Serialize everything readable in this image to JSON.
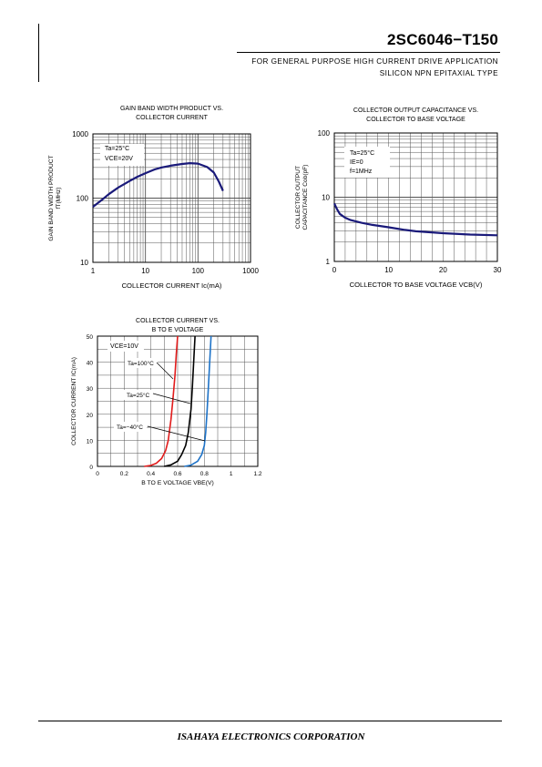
{
  "header": {
    "part_number": "2SC6046−T150",
    "purpose": "FOR GENERAL PURPOSE HIGH CURRENT DRIVE APPLICATION",
    "type": "SILICON NPN EPITAXIAL TYPE"
  },
  "footer": {
    "company": "ISAHAYA ELECTRONICS CORPORATION"
  },
  "chart_data": [
    {
      "id": "ft",
      "type": "line",
      "title_lines": [
        "GAIN BAND WIDTH PRODUCT VS.",
        "COLLECTOR CURRENT"
      ],
      "xlabel": "COLLECTOR CURRENT  Ic(mA)",
      "ylabel_lines": [
        "GAIN BAND WIDTH PRODUCT",
        "fT(MHz)"
      ],
      "x_scale": "log",
      "y_scale": "log",
      "xlim": [
        1,
        1000
      ],
      "ylim": [
        10,
        1000
      ],
      "x_ticks": [
        {
          "v": 1,
          "label": "1"
        },
        {
          "v": 10,
          "label": "10"
        },
        {
          "v": 100,
          "label": "100"
        },
        {
          "v": 1000,
          "label": "1000"
        }
      ],
      "y_ticks": [
        {
          "v": 10,
          "label": "10"
        },
        {
          "v": 100,
          "label": "100"
        },
        {
          "v": 1000,
          "label": "1000"
        }
      ],
      "grid": true,
      "annotations": [
        "Ta=25°C",
        "VCE=20V"
      ],
      "series": [
        {
          "color": "#1a1a7a",
          "x": [
            1,
            1.5,
            2,
            3,
            5,
            7,
            10,
            15,
            20,
            30,
            50,
            70,
            100,
            150,
            200,
            250,
            300
          ],
          "y": [
            73,
            95,
            115,
            145,
            185,
            215,
            245,
            280,
            300,
            320,
            340,
            350,
            345,
            305,
            250,
            180,
            130
          ]
        }
      ]
    },
    {
      "id": "cob",
      "type": "line",
      "title_lines": [
        "COLLECTOR OUTPUT CAPACITANCE VS.",
        "COLLECTOR TO BASE VOLTAGE"
      ],
      "xlabel": "COLLECTOR TO BASE VOLTAGE  VCB(V)",
      "ylabel_lines": [
        "COLLECTOR OUTPUT",
        "CAPACITANCE  Cob(pF)"
      ],
      "x_scale": "linear",
      "y_scale": "log",
      "xlim": [
        0,
        30
      ],
      "ylim": [
        1,
        100
      ],
      "x_ticks": [
        {
          "v": 0,
          "label": "0"
        },
        {
          "v": 10,
          "label": "10"
        },
        {
          "v": 20,
          "label": "20"
        },
        {
          "v": 30,
          "label": "30"
        }
      ],
      "y_ticks": [
        {
          "v": 1,
          "label": "1"
        },
        {
          "v": 10,
          "label": "10"
        },
        {
          "v": 100,
          "label": "100"
        }
      ],
      "grid": true,
      "annotations": [
        "Ta=25°C",
        "IE=0",
        "f=1MHz"
      ],
      "series": [
        {
          "color": "#1a1a7a",
          "x": [
            0,
            0.5,
            1,
            2,
            3,
            5,
            7,
            10,
            13,
            15,
            20,
            25,
            30
          ],
          "y": [
            8,
            6.5,
            5.5,
            4.8,
            4.4,
            4.0,
            3.7,
            3.4,
            3.1,
            2.95,
            2.75,
            2.62,
            2.55
          ]
        }
      ]
    },
    {
      "id": "vbe",
      "type": "line",
      "title_lines": [
        "COLLECTOR CURRENT VS.",
        "B TO E VOLTAGE"
      ],
      "xlabel": "B TO E VOLTAGE  VBE(V)",
      "ylabel_lines": [
        "COLLECTOR CURRENT  IC(mA)"
      ],
      "x_scale": "linear",
      "y_scale": "linear",
      "xlim": [
        0,
        1.2
      ],
      "ylim": [
        0,
        50
      ],
      "x_ticks": [
        {
          "v": 0,
          "label": "0"
        },
        {
          "v": 0.2,
          "label": "0.2"
        },
        {
          "v": 0.4,
          "label": "0.4"
        },
        {
          "v": 0.6,
          "label": "0.6"
        },
        {
          "v": 0.8,
          "label": "0.8"
        },
        {
          "v": 1,
          "label": "1"
        },
        {
          "v": 1.2,
          "label": "1.2"
        }
      ],
      "y_ticks": [
        {
          "v": 0,
          "label": "0"
        },
        {
          "v": 10,
          "label": "10"
        },
        {
          "v": 20,
          "label": "20"
        },
        {
          "v": 30,
          "label": "30"
        },
        {
          "v": 40,
          "label": "40"
        },
        {
          "v": 50,
          "label": "50"
        }
      ],
      "grid": true,
      "annotations": [
        "VCE=10V"
      ],
      "series": [
        {
          "name": "Ta=100°C",
          "color": "#e21b1b",
          "x": [
            0.35,
            0.4,
            0.44,
            0.48,
            0.51,
            0.53,
            0.55,
            0.565,
            0.58,
            0.59,
            0.6
          ],
          "y": [
            0,
            0.4,
            1.2,
            3,
            6,
            10,
            18,
            26,
            35,
            43,
            50
          ]
        },
        {
          "name": "Ta=25°C",
          "color": "#000000",
          "x": [
            0.5,
            0.55,
            0.6,
            0.63,
            0.66,
            0.68,
            0.7,
            0.71,
            0.72,
            0.73
          ],
          "y": [
            0,
            0.6,
            2,
            4.5,
            8,
            13,
            22,
            30,
            40,
            50
          ]
        },
        {
          "name": "Ta=−40°C",
          "color": "#1e73c8",
          "x": [
            0.65,
            0.7,
            0.75,
            0.78,
            0.8,
            0.81,
            0.82,
            0.83,
            0.84,
            0.85
          ],
          "y": [
            0,
            0.5,
            2,
            4.5,
            8,
            13,
            21,
            30,
            40,
            50
          ]
        }
      ]
    }
  ]
}
